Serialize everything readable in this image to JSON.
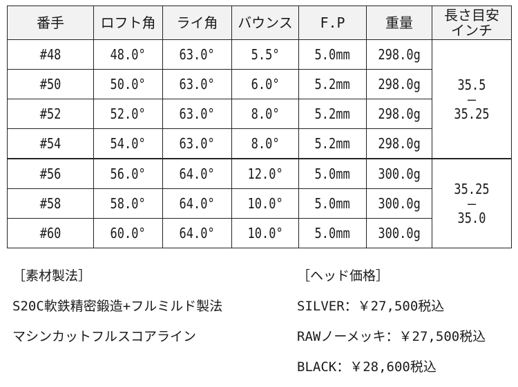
{
  "table": {
    "headers": [
      "番手",
      "ロフト角",
      "ライ角",
      "バウンス",
      "F.P",
      "重量",
      "長さ目安インチ"
    ],
    "header_length_line1": "長さ目安",
    "header_length_line2": "インチ",
    "rows": [
      [
        "#48",
        "48.0°",
        "63.0°",
        "5.5°",
        "5.0mm",
        "298.0g"
      ],
      [
        "#50",
        "50.0°",
        "63.0°",
        "6.0°",
        "5.2mm",
        "298.0g"
      ],
      [
        "#52",
        "52.0°",
        "63.0°",
        "8.0°",
        "5.2mm",
        "298.0g"
      ],
      [
        "#54",
        "54.0°",
        "63.0°",
        "8.0°",
        "5.2mm",
        "298.0g"
      ],
      [
        "#56",
        "56.0°",
        "64.0°",
        "12.0°",
        "5.0mm",
        "300.0g"
      ],
      [
        "#58",
        "58.0°",
        "64.0°",
        "10.0°",
        "5.0mm",
        "300.0g"
      ],
      [
        "#60",
        "60.0°",
        "64.0°",
        "10.0°",
        "5.0mm",
        "300.0g"
      ]
    ],
    "length_groups": [
      {
        "from": "35.5",
        "sep": "–",
        "to": "35.25"
      },
      {
        "from": "35.25",
        "sep": "–",
        "to": "35.0"
      }
    ]
  },
  "material": {
    "heading": "［素材製法］",
    "lines": [
      "S20C軟鉄精密鍛造+フルミルド製法",
      "マシンカットフルスコアライン"
    ]
  },
  "price": {
    "heading": "［ヘッド価格］",
    "lines": [
      "SILVER：￥27,500税込",
      "RAWノーメッキ：￥27,500税込",
      "BLACK：￥28,600税込"
    ]
  }
}
